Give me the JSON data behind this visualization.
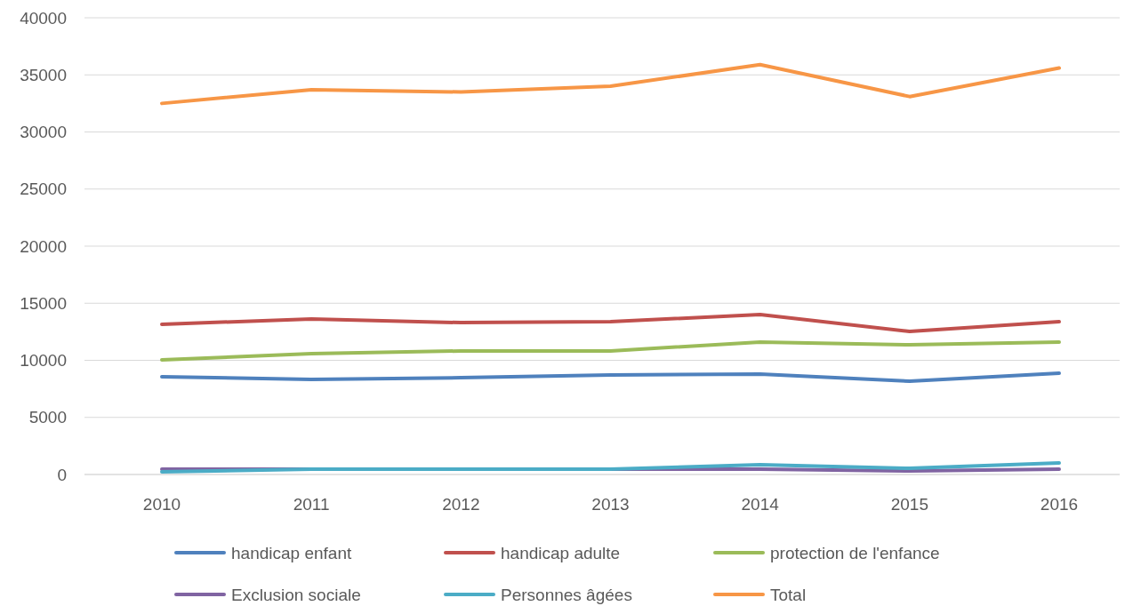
{
  "chart_data": {
    "type": "line",
    "categories": [
      "2010",
      "2011",
      "2012",
      "2013",
      "2014",
      "2015",
      "2016"
    ],
    "ylim": [
      0,
      40000
    ],
    "yticks": [
      0,
      5000,
      10000,
      15000,
      20000,
      25000,
      30000,
      35000,
      40000
    ],
    "grid": "y",
    "legend": "bottom",
    "marker": "none",
    "line_style": "solid",
    "series": [
      {
        "name": "handicap enfant",
        "color": "#4f81bd",
        "values": [
          8560,
          8330,
          8480,
          8720,
          8790,
          8170,
          8870
        ]
      },
      {
        "name": "handicap adulte",
        "color": "#c0504d",
        "values": [
          13150,
          13620,
          13300,
          13380,
          14010,
          12530,
          13380
        ]
      },
      {
        "name": "protection de l'enfance",
        "color": "#9bbb59",
        "values": [
          10040,
          10580,
          10820,
          10820,
          11600,
          11360,
          11600
        ]
      },
      {
        "name": "Exclusion sociale",
        "color": "#8064a2",
        "values": [
          470,
          470,
          470,
          470,
          470,
          310,
          470
        ]
      },
      {
        "name": "Personnes âgées",
        "color": "#4bacc6",
        "values": [
          230,
          470,
          470,
          470,
          860,
          540,
          1010
        ]
      },
      {
        "name": "Total",
        "color": "#f79646",
        "values": [
          32500,
          33700,
          33500,
          34000,
          35900,
          33100,
          35600
        ]
      }
    ]
  }
}
